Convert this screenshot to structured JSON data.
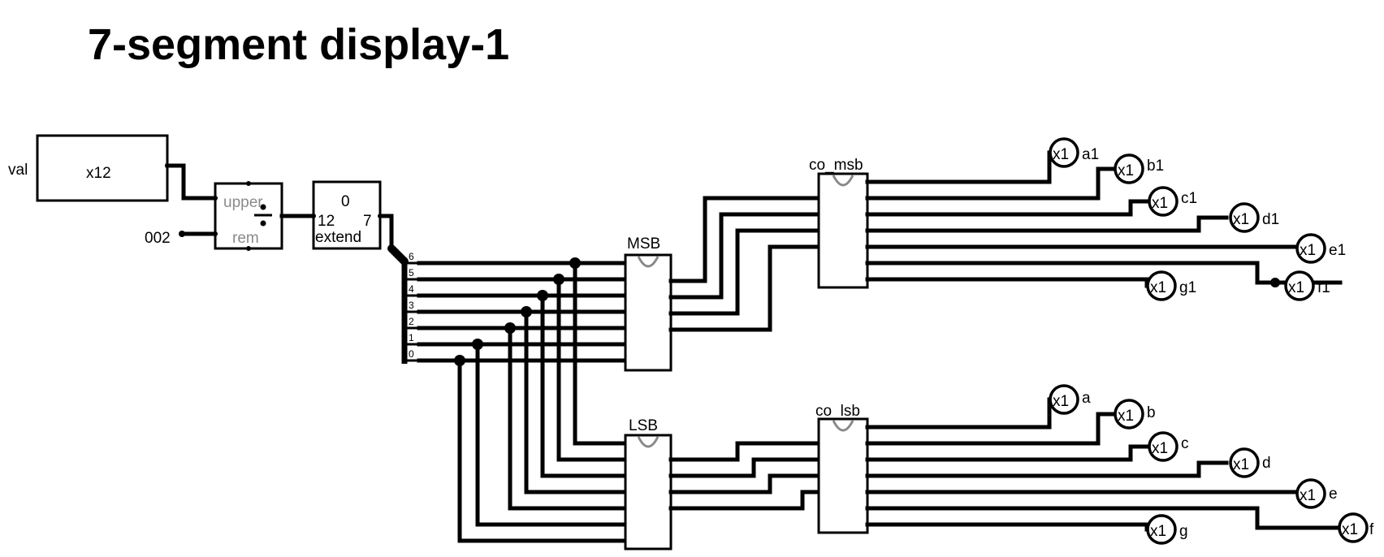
{
  "title": "7-segment display-1",
  "inputs": {
    "val_label": "val",
    "val_width": "x12",
    "const_value": "002"
  },
  "divider": {
    "upper_label": "upper",
    "rem_label": "rem"
  },
  "extender": {
    "top": "0",
    "in_bits": "12",
    "out_bits": "7",
    "label": "extend"
  },
  "splitter_bits": [
    "6",
    "5",
    "4",
    "3",
    "2",
    "1",
    "0"
  ],
  "subcircuits": {
    "msb": "MSB",
    "lsb": "LSB",
    "co_msb": "co_msb",
    "co_lsb": "co_lsb"
  },
  "outputs_msb": [
    {
      "width": "x1",
      "name": "a1"
    },
    {
      "width": "x1",
      "name": "b1"
    },
    {
      "width": "x1",
      "name": "c1"
    },
    {
      "width": "x1",
      "name": "d1"
    },
    {
      "width": "x1",
      "name": "e1"
    },
    {
      "width": "x1",
      "name": "f1"
    },
    {
      "width": "x1",
      "name": "g1"
    }
  ],
  "outputs_lsb": [
    {
      "width": "x1",
      "name": "a"
    },
    {
      "width": "x1",
      "name": "b"
    },
    {
      "width": "x1",
      "name": "c"
    },
    {
      "width": "x1",
      "name": "d"
    },
    {
      "width": "x1",
      "name": "e"
    },
    {
      "width": "x1",
      "name": "f"
    },
    {
      "width": "x1",
      "name": "g"
    }
  ]
}
